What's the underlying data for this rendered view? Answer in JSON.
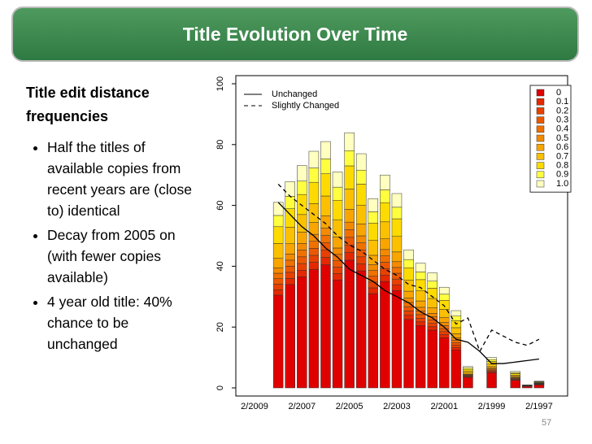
{
  "header": {
    "title": "Title Evolution Over Time"
  },
  "body": {
    "heading": "Title edit distance frequencies",
    "bullets": [
      "Half the titles of available copies from recent years are (close to) identical",
      "Decay from 2005 on (with fewer copies available)",
      "4 year old title: 40% chance to be unchanged"
    ]
  },
  "footer": {
    "page_number": "57"
  },
  "chart_data": {
    "type": "stacked_bar",
    "categories": [
      "2/2009",
      null,
      null,
      null,
      "2/2007",
      null,
      null,
      null,
      "2/2005",
      null,
      null,
      null,
      "2/2003",
      null,
      null,
      null,
      "2/2001",
      null,
      null,
      null,
      "2/1999",
      null,
      null,
      null,
      "2/1997",
      null,
      null
    ],
    "ylim": [
      0,
      100
    ],
    "yticks": [
      0,
      20,
      40,
      60,
      80,
      100
    ],
    "series": [
      {
        "name": "0",
        "color": "#e00000",
        "values": [
          0,
          0,
          30.5,
          34,
          36.5,
          39,
          40.5,
          35.5,
          42,
          38.5,
          31,
          35,
          32,
          22.5,
          20.5,
          19,
          16.5,
          12.5,
          3.5,
          0,
          5,
          0,
          2.5,
          0.5,
          1,
          0,
          0
        ]
      },
      {
        "name": "0.1",
        "color": "#e42800",
        "values": [
          0,
          0,
          1.8,
          2.0,
          2.2,
          2.3,
          2.4,
          2.1,
          2.5,
          2.3,
          1.9,
          2.1,
          1.9,
          1.4,
          1.2,
          1.1,
          1.0,
          0.8,
          0.2,
          0,
          0.3,
          0,
          0.2,
          0,
          0.1,
          0,
          0
        ]
      },
      {
        "name": "0.2",
        "color": "#e84000",
        "values": [
          0,
          0,
          1.8,
          2.0,
          2.2,
          2.3,
          2.4,
          2.1,
          2.5,
          2.3,
          1.9,
          2.1,
          1.9,
          1.4,
          1.2,
          1.1,
          1.0,
          0.8,
          0.2,
          0,
          0.3,
          0,
          0.2,
          0,
          0.1,
          0,
          0
        ]
      },
      {
        "name": "0.3",
        "color": "#ec5800",
        "values": [
          0,
          0,
          1.8,
          2.0,
          2.2,
          2.3,
          2.4,
          2.1,
          2.5,
          2.3,
          1.9,
          2.1,
          1.9,
          1.4,
          1.2,
          1.1,
          1.0,
          0.8,
          0.2,
          0,
          0.3,
          0,
          0.2,
          0,
          0.1,
          0,
          0
        ]
      },
      {
        "name": "0.4",
        "color": "#f07000",
        "values": [
          0,
          0,
          1.8,
          2.0,
          2.2,
          2.3,
          2.4,
          2.1,
          2.5,
          2.3,
          1.9,
          2.1,
          1.9,
          1.4,
          1.2,
          1.1,
          1.0,
          0.8,
          0.2,
          0,
          0.3,
          0,
          0.2,
          0,
          0.1,
          0,
          0
        ]
      },
      {
        "name": "0.5",
        "color": "#f48a00",
        "values": [
          0,
          0,
          1.8,
          2.0,
          2.2,
          2.3,
          2.4,
          2.1,
          2.5,
          2.3,
          1.9,
          2.1,
          1.9,
          1.4,
          1.2,
          1.1,
          1.0,
          0.8,
          0.2,
          0,
          0.3,
          0,
          0.2,
          0,
          0.1,
          0,
          0
        ]
      },
      {
        "name": "0.6",
        "color": "#f8a500",
        "values": [
          0,
          0,
          3.1,
          3.4,
          3.7,
          3.9,
          4.1,
          3.6,
          4.2,
          3.9,
          3.1,
          3.5,
          3.2,
          2.3,
          2.1,
          1.9,
          1.7,
          1.3,
          0.4,
          0,
          0.5,
          0,
          0.3,
          0.1,
          0.1,
          0,
          0
        ]
      },
      {
        "name": "0.7",
        "color": "#fbc000",
        "values": [
          0,
          0,
          4.9,
          5.4,
          5.8,
          6.2,
          6.5,
          5.7,
          6.7,
          6.2,
          5.0,
          5.6,
          5.1,
          3.6,
          3.3,
          3.0,
          2.6,
          2.0,
          0.6,
          0,
          0.8,
          0,
          0.4,
          0.1,
          0.2,
          0,
          0
        ]
      },
      {
        "name": "0.8",
        "color": "#fedb00",
        "values": [
          0,
          0,
          5.5,
          6.1,
          6.6,
          7.0,
          7.3,
          6.4,
          7.6,
          6.9,
          5.6,
          6.3,
          5.8,
          4.1,
          3.7,
          3.4,
          3.0,
          2.3,
          0.6,
          0,
          0.9,
          0,
          0.5,
          0.1,
          0.2,
          0,
          0
        ]
      },
      {
        "name": "0.9",
        "color": "#ffff40",
        "values": [
          0,
          0,
          3.7,
          4.1,
          4.4,
          4.7,
          4.9,
          4.3,
          5.0,
          4.6,
          3.7,
          4.2,
          3.8,
          2.7,
          2.5,
          2.3,
          2.0,
          1.5,
          0.4,
          0,
          0.6,
          0,
          0.3,
          0.1,
          0.1,
          0,
          0
        ]
      },
      {
        "name": "1.0",
        "color": "#ffffc0",
        "values": [
          0,
          0,
          4.3,
          4.8,
          5.1,
          5.5,
          5.7,
          5.0,
          5.9,
          5.4,
          4.3,
          4.9,
          4.5,
          3.2,
          2.9,
          2.7,
          2.3,
          1.8,
          0.5,
          0,
          0.7,
          0,
          0.4,
          0.1,
          0.1,
          0,
          0
        ]
      }
    ],
    "lines": [
      {
        "name": "Unchanged",
        "style": "solid",
        "color": "#000000",
        "values": [
          null,
          null,
          61,
          57,
          53,
          50,
          46,
          43,
          39,
          37,
          35,
          32,
          30,
          28,
          25,
          23,
          20,
          16,
          15,
          12,
          8,
          8,
          8.5,
          9,
          9.5,
          null,
          null
        ]
      },
      {
        "name": "Slightly Changed",
        "style": "dashed",
        "color": "#000000",
        "values": [
          null,
          null,
          67,
          63,
          60,
          57,
          54,
          50,
          47,
          45,
          42,
          39,
          37,
          34,
          33,
          30,
          27,
          21,
          23,
          12,
          19,
          17,
          15,
          14,
          16,
          null,
          null
        ]
      }
    ]
  }
}
